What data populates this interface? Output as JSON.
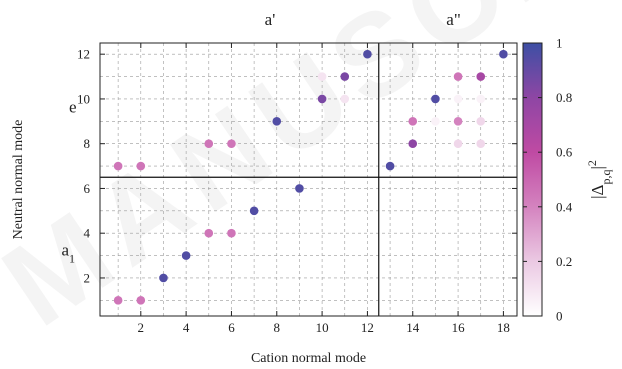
{
  "chart_data": {
    "type": "scatter",
    "xlabel": "Cation normal mode",
    "ylabel": "Neutral normal mode",
    "xlim": [
      0.2,
      18.6
    ],
    "ylim": [
      0.3,
      12.5
    ],
    "x_ticks": [
      2,
      4,
      6,
      8,
      10,
      12,
      14,
      16,
      18
    ],
    "y_ticks": [
      2,
      4,
      6,
      8,
      10,
      12
    ],
    "grid": true,
    "dividers": {
      "x": 12.5,
      "y": 6.5
    },
    "region_labels": [
      {
        "text": "a'",
        "x": 7.7,
        "y": 13.3
      },
      {
        "text": "a\"",
        "x": 15.8,
        "y": 13.3
      },
      {
        "text": "e",
        "x": -1.0,
        "y": 9.4
      },
      {
        "text": "a1",
        "x": -1.2,
        "y": 3.0
      }
    ],
    "colorbar": {
      "title": "|Δp,q|2",
      "range": [
        0,
        1
      ],
      "ticks": [
        0,
        0.2,
        0.4,
        0.6,
        0.8,
        1
      ],
      "colors": [
        "#ffffff",
        "#ebc9e3",
        "#d483bf",
        "#bf4aa3",
        "#8e46a4",
        "#3d4fa4"
      ]
    },
    "points": [
      {
        "x": 1,
        "y": 1,
        "v": 0.45
      },
      {
        "x": 2,
        "y": 1,
        "v": 0.45
      },
      {
        "x": 3,
        "y": 2,
        "v": 0.95
      },
      {
        "x": 4,
        "y": 3,
        "v": 0.95
      },
      {
        "x": 5,
        "y": 4,
        "v": 0.45
      },
      {
        "x": 6,
        "y": 4,
        "v": 0.45
      },
      {
        "x": 7,
        "y": 5,
        "v": 0.95
      },
      {
        "x": 9,
        "y": 6,
        "v": 0.95
      },
      {
        "x": 1,
        "y": 7,
        "v": 0.45
      },
      {
        "x": 2,
        "y": 7,
        "v": 0.45
      },
      {
        "x": 5,
        "y": 8,
        "v": 0.45
      },
      {
        "x": 6,
        "y": 8,
        "v": 0.45
      },
      {
        "x": 8,
        "y": 9,
        "v": 0.95
      },
      {
        "x": 10,
        "y": 10,
        "v": 0.85
      },
      {
        "x": 11,
        "y": 10,
        "v": 0.1
      },
      {
        "x": 10,
        "y": 11,
        "v": 0.1
      },
      {
        "x": 11,
        "y": 11,
        "v": 0.85
      },
      {
        "x": 12,
        "y": 12,
        "v": 0.95
      },
      {
        "x": 13,
        "y": 7,
        "v": 0.95
      },
      {
        "x": 14,
        "y": 8,
        "v": 0.8
      },
      {
        "x": 14,
        "y": 9,
        "v": 0.45
      },
      {
        "x": 15,
        "y": 9,
        "v": 0.05
      },
      {
        "x": 15,
        "y": 10,
        "v": 0.95
      },
      {
        "x": 16,
        "y": 8,
        "v": 0.15
      },
      {
        "x": 16,
        "y": 9,
        "v": 0.4
      },
      {
        "x": 16,
        "y": 10,
        "v": 0.05
      },
      {
        "x": 16,
        "y": 11,
        "v": 0.45
      },
      {
        "x": 17,
        "y": 8,
        "v": 0.15
      },
      {
        "x": 17,
        "y": 9,
        "v": 0.15
      },
      {
        "x": 17,
        "y": 10,
        "v": 0.05
      },
      {
        "x": 17,
        "y": 11,
        "v": 0.7
      },
      {
        "x": 18,
        "y": 12,
        "v": 0.95
      }
    ]
  },
  "watermark_text": "MANUSCRIPT"
}
